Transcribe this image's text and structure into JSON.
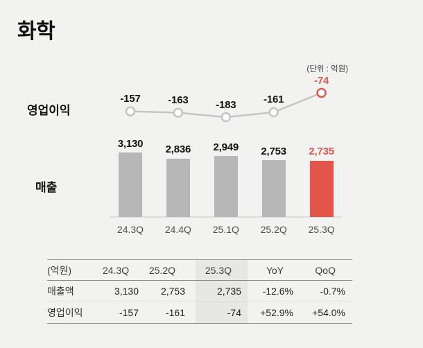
{
  "page": {
    "title": "화학",
    "unit_note": "(단위 : 억원)"
  },
  "colors": {
    "background": "#f2f2f1",
    "accent_red": "#e4564c",
    "bar_gray": "#b7b7b7",
    "line_gray": "#c4c4c4",
    "highlight_bg": "#e7e7e4"
  },
  "chart_data": {
    "type": "combo",
    "title": "화학",
    "unit": "억원",
    "categories": [
      "24.3Q",
      "24.4Q",
      "25.1Q",
      "25.2Q",
      "25.3Q"
    ],
    "highlight_index": 4,
    "series": [
      {
        "name": "영업이익",
        "type": "line",
        "values": [
          -157,
          -163,
          -183,
          -161,
          -74
        ],
        "labels": [
          "-157",
          "-163",
          "-183",
          "-161",
          "-74"
        ]
      },
      {
        "name": "매출",
        "type": "bar",
        "values": [
          3130,
          2836,
          2949,
          2753,
          2735
        ],
        "labels": [
          "3,130",
          "2,836",
          "2,949",
          "2,753",
          "2,735"
        ]
      }
    ],
    "legend_position": "left",
    "grid": false
  },
  "table": {
    "unit_header": "(억원)",
    "columns": [
      "24.3Q",
      "25.2Q",
      "25.3Q",
      "YoY",
      "QoQ"
    ],
    "highlight_column_index": 2,
    "rows": [
      {
        "label": "매출액",
        "values": [
          "3,130",
          "2,753",
          "2,735",
          "-12.6%",
          "-0.7%"
        ]
      },
      {
        "label": "영업이익",
        "values": [
          "-157",
          "-161",
          "-74",
          "+52.9%",
          "+54.0%"
        ]
      }
    ]
  }
}
